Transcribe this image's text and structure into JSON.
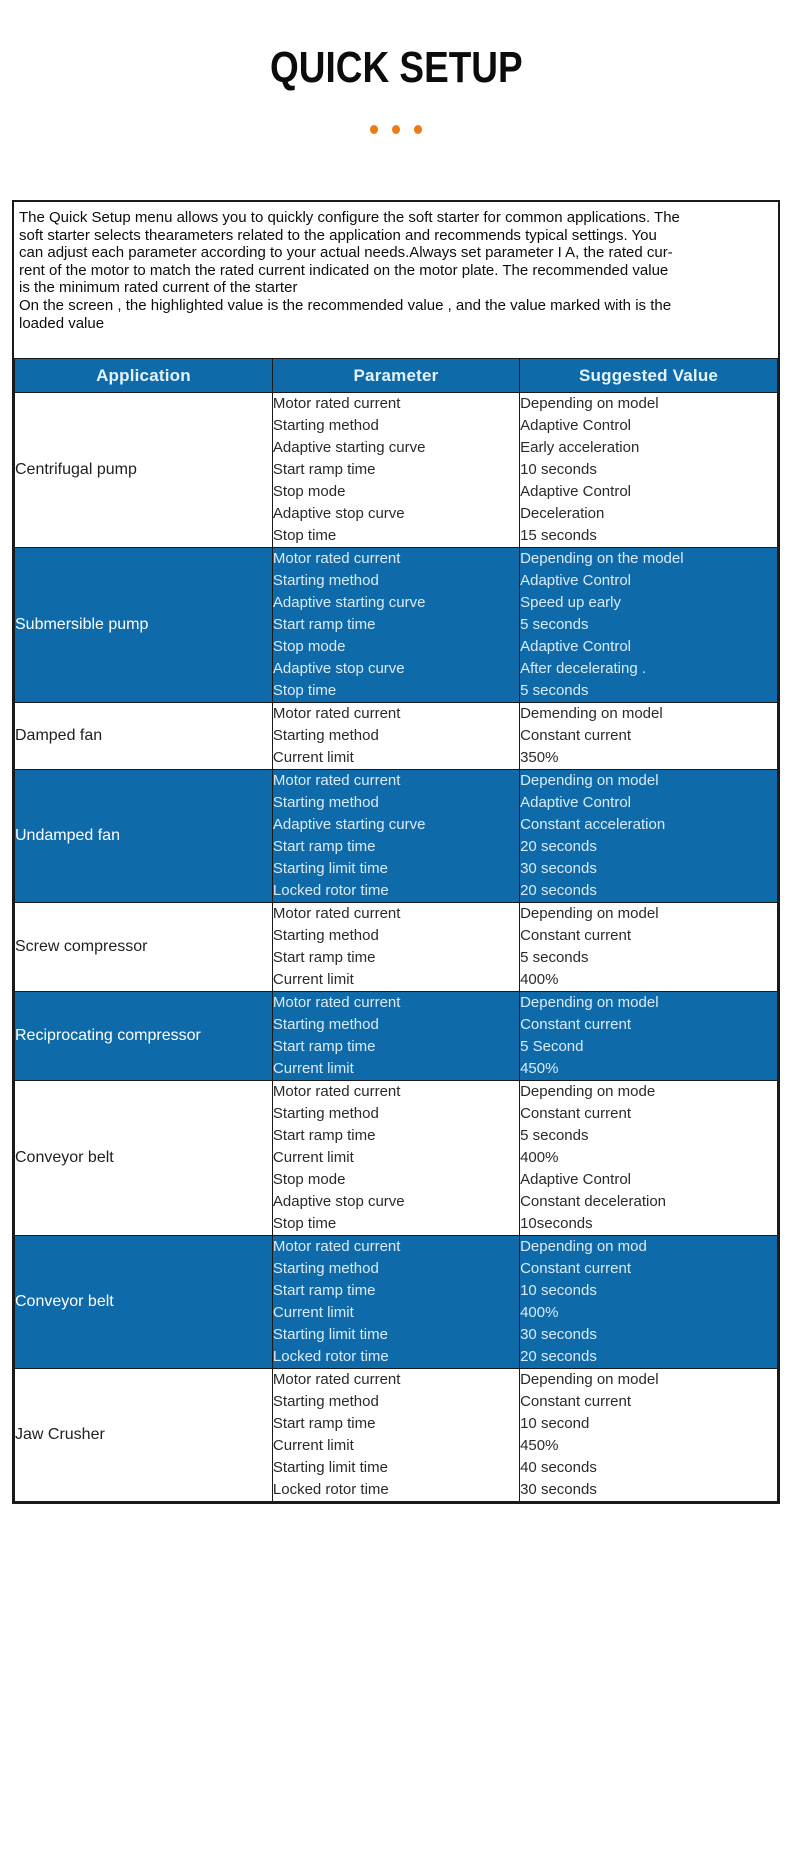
{
  "page": {
    "title": "QUICK SETUP"
  },
  "colors": {
    "accent_blue": "#0f6aa9",
    "dot_orange": "#ee7b11"
  },
  "intro": {
    "lines": [
      "The Quick Setup menu allows you to quickly configure the soft starter for common applications. The",
      "soft starter selects thearameters related to the application and recommends typical settings. You",
      "can adjust each parameter according to your actual needs.Always set parameter I A, the rated cur-",
      "rent of the motor to match the rated current indicated on the motor plate. The recommended value",
      "is the minimum rated current of the starter",
      "On the screen , the highlighted value is the recommended value , and the value marked with is the",
      "loaded value"
    ]
  },
  "table": {
    "headers": [
      "Application",
      "Parameter",
      "Suggested Value"
    ],
    "rows": [
      {
        "application": "Centrifugal pump",
        "highlight": false,
        "parameters": [
          "Motor rated current",
          "Starting method",
          "Adaptive starting curve",
          "Start ramp time",
          "Stop mode",
          "Adaptive stop curve",
          "Stop time"
        ],
        "values": [
          "Depending on model",
          "Adaptive Control",
          "Early acceleration",
          "10 seconds",
          "Adaptive Control",
          "Deceleration",
          "15 seconds"
        ]
      },
      {
        "application": "Submersible pump",
        "highlight": true,
        "parameters": [
          "Motor rated current",
          "Starting method",
          "Adaptive starting curve",
          "Start ramp time",
          "Stop mode",
          "Adaptive stop curve",
          "Stop time"
        ],
        "values": [
          "Depending on the model",
          "Adaptive Control",
          "Speed up early",
          "5 seconds",
          "Adaptive Control",
          "After decelerating .",
          "5 seconds"
        ]
      },
      {
        "application": "Damped fan",
        "highlight": false,
        "parameters": [
          "Motor rated current",
          "Starting method",
          "Current limit"
        ],
        "values": [
          "Demending on model",
          "Constant current",
          "350%"
        ]
      },
      {
        "application": "Undamped fan",
        "highlight": true,
        "parameters": [
          "Motor rated current",
          "Starting method",
          "Adaptive starting curve",
          "Start ramp time",
          "Starting limit time",
          "Locked rotor time"
        ],
        "values": [
          "Depending on model",
          "Adaptive Control",
          "Constant acceleration",
          "20 seconds",
          "30 seconds",
          "20 seconds"
        ]
      },
      {
        "application": "Screw compressor",
        "highlight": false,
        "parameters": [
          "Motor rated current",
          "Starting method",
          "Start ramp time",
          "Current limit"
        ],
        "values": [
          "Depending on model",
          "Constant current",
          "5 seconds",
          "400%"
        ]
      },
      {
        "application": "Reciprocating compressor",
        "highlight": true,
        "parameters": [
          "Motor rated current",
          "Starting method",
          "Start ramp time",
          "Current limit"
        ],
        "values": [
          "Depending on model",
          "Constant current",
          "5 Second",
          "450%"
        ]
      },
      {
        "application": "Conveyor belt",
        "highlight": false,
        "parameters": [
          "Motor rated current",
          "Starting method",
          "Start ramp time",
          "Current limit",
          "Stop mode",
          "Adaptive stop curve",
          "Stop time"
        ],
        "values": [
          "Depending on mode",
          "Constant current",
          "5 seconds",
          "400%",
          "Adaptive Control",
          "Constant deceleration",
          "10seconds"
        ]
      },
      {
        "application": "Conveyor belt",
        "highlight": true,
        "parameters": [
          "Motor rated current",
          "Starting method",
          "Start ramp time",
          "Current limit",
          "Starting limit time",
          "Locked rotor time"
        ],
        "values": [
          "Depending on mod",
          "Constant current",
          "10 seconds",
          "400%",
          "30 seconds",
          "20 seconds"
        ]
      },
      {
        "application": "Jaw Crusher",
        "highlight": false,
        "parameters": [
          "Motor rated current",
          "Starting method",
          "Start ramp time",
          "Current limit",
          "Starting limit time",
          "Locked rotor time"
        ],
        "values": [
          "Depending on model",
          "Constant current",
          "10 second",
          "450%",
          "40 seconds",
          "30 seconds"
        ]
      }
    ]
  }
}
